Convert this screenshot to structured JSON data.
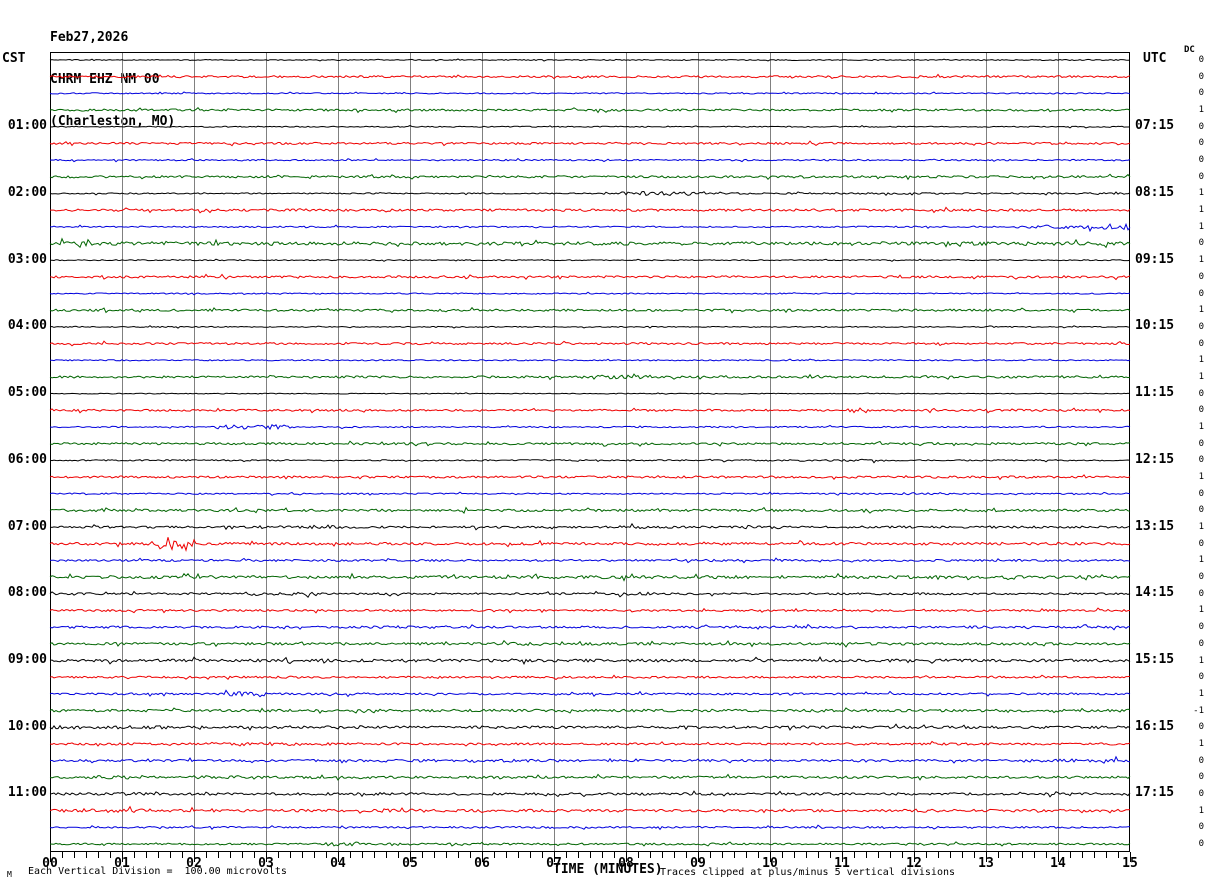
{
  "title": {
    "date": "Feb27,2026",
    "station": "CHRM EHZ NM 00",
    "location": "(Charleston, MO)"
  },
  "axes": {
    "left_heading": "CST",
    "right_heading": "UTC",
    "dc_heading": "DC",
    "x_title": "TIME (MINUTES)",
    "x_ticks": [
      "00",
      "01",
      "02",
      "03",
      "04",
      "05",
      "06",
      "07",
      "08",
      "09",
      "10",
      "11",
      "12",
      "13",
      "14",
      "15"
    ]
  },
  "footer": {
    "scale_note": "Each Vertical Division =  100.00 microvolts",
    "clip_note": "Traces clipped at plus/minus 5 vertical divisions",
    "corner_glyph": "M"
  },
  "colors": {
    "background": "#ffffff",
    "grid": "#808080",
    "frame": "#000000",
    "trace": {
      "black": "#000000",
      "red": "#ee0000",
      "blue": "#0000dd",
      "green": "#006400"
    }
  },
  "chart_data": {
    "type": "line",
    "subtype": "seismogram-helicorder",
    "title": "CHRM EHZ NM 00 (Charleston, MO) Feb27,2026",
    "xlabel": "TIME (MINUTES)",
    "x_range_minutes": [
      0,
      15
    ],
    "minutes_per_trace": 15,
    "traces_per_hour": 4,
    "color_cycle": [
      "black",
      "red",
      "blue",
      "green"
    ],
    "left_labels_cst": [
      "01:00",
      "02:00",
      "03:00",
      "04:00",
      "05:00",
      "06:00",
      "07:00",
      "08:00",
      "09:00",
      "10:00",
      "11:00"
    ],
    "right_labels_utc": [
      "07:15",
      "08:15",
      "09:15",
      "10:15",
      "11:15",
      "12:15",
      "13:15",
      "14:15",
      "15:15",
      "16:15",
      "17:15"
    ],
    "traces": [
      {
        "color": "black",
        "dc": 0,
        "cst_label": "",
        "utc_label": "",
        "noise": 0.5,
        "events": []
      },
      {
        "color": "red",
        "dc": 0,
        "cst_label": "",
        "utc_label": "",
        "noise": 1.0,
        "events": []
      },
      {
        "color": "blue",
        "dc": 0,
        "cst_label": "",
        "utc_label": "",
        "noise": 0.6,
        "events": []
      },
      {
        "color": "green",
        "dc": 1,
        "cst_label": "",
        "utc_label": "",
        "noise": 1.1,
        "events": []
      },
      {
        "color": "black",
        "dc": 0,
        "cst_label": "01:00",
        "utc_label": "07:15",
        "noise": 0.5,
        "events": []
      },
      {
        "color": "red",
        "dc": 0,
        "cst_label": "",
        "utc_label": "",
        "noise": 1.0,
        "events": []
      },
      {
        "color": "blue",
        "dc": 0,
        "cst_label": "",
        "utc_label": "",
        "noise": 0.7,
        "events": []
      },
      {
        "color": "green",
        "dc": 0,
        "cst_label": "",
        "utc_label": "",
        "noise": 1.1,
        "events": []
      },
      {
        "color": "black",
        "dc": 1,
        "cst_label": "02:00",
        "utc_label": "08:15",
        "noise": 0.6,
        "events": [
          [
            7.9,
            9.1,
            2.0
          ],
          [
            9.2,
            15,
            0.8
          ]
        ]
      },
      {
        "color": "red",
        "dc": 1,
        "cst_label": "",
        "utc_label": "",
        "noise": 1.2,
        "events": []
      },
      {
        "color": "blue",
        "dc": 1,
        "cst_label": "",
        "utc_label": "",
        "noise": 0.7,
        "events": [
          [
            13.4,
            14.6,
            1.8
          ],
          [
            14.6,
            15,
            3.0
          ]
        ]
      },
      {
        "color": "green",
        "dc": 0,
        "cst_label": "",
        "utc_label": "",
        "noise": 1.7,
        "events": [
          [
            0,
            0.5,
            2.6
          ],
          [
            3.5,
            5.2,
            1.3
          ],
          [
            10.8,
            12.3,
            1.1
          ],
          [
            14.2,
            15,
            1.2
          ]
        ]
      },
      {
        "color": "black",
        "dc": 1,
        "cst_label": "03:00",
        "utc_label": "09:15",
        "noise": 0.5,
        "events": []
      },
      {
        "color": "red",
        "dc": 0,
        "cst_label": "",
        "utc_label": "",
        "noise": 1.1,
        "events": []
      },
      {
        "color": "blue",
        "dc": 0,
        "cst_label": "",
        "utc_label": "",
        "noise": 0.6,
        "events": []
      },
      {
        "color": "green",
        "dc": 1,
        "cst_label": "",
        "utc_label": "",
        "noise": 1.1,
        "events": []
      },
      {
        "color": "black",
        "dc": 0,
        "cst_label": "04:00",
        "utc_label": "10:15",
        "noise": 0.5,
        "events": []
      },
      {
        "color": "red",
        "dc": 0,
        "cst_label": "",
        "utc_label": "",
        "noise": 1.0,
        "events": []
      },
      {
        "color": "blue",
        "dc": 1,
        "cst_label": "",
        "utc_label": "",
        "noise": 0.6,
        "events": []
      },
      {
        "color": "green",
        "dc": 1,
        "cst_label": "",
        "utc_label": "",
        "noise": 1.1,
        "events": [
          [
            7.3,
            8.4,
            1.8
          ]
        ]
      },
      {
        "color": "black",
        "dc": 0,
        "cst_label": "05:00",
        "utc_label": "11:15",
        "noise": 0.4,
        "events": []
      },
      {
        "color": "red",
        "dc": 0,
        "cst_label": "",
        "utc_label": "",
        "noise": 1.0,
        "events": [
          [
            1.1,
            1.9,
            0.9
          ]
        ]
      },
      {
        "color": "blue",
        "dc": 1,
        "cst_label": "",
        "utc_label": "",
        "noise": 0.7,
        "events": [
          [
            2.3,
            3.4,
            2.2
          ]
        ]
      },
      {
        "color": "green",
        "dc": 0,
        "cst_label": "",
        "utc_label": "",
        "noise": 1.1,
        "events": []
      },
      {
        "color": "black",
        "dc": 0,
        "cst_label": "06:00",
        "utc_label": "12:15",
        "noise": 0.7,
        "events": [
          [
            9.5,
            11.7,
            1.0
          ]
        ]
      },
      {
        "color": "red",
        "dc": 1,
        "cst_label": "",
        "utc_label": "",
        "noise": 1.1,
        "events": []
      },
      {
        "color": "blue",
        "dc": 0,
        "cst_label": "",
        "utc_label": "",
        "noise": 0.7,
        "events": [
          [
            11.8,
            12.5,
            1.2
          ]
        ]
      },
      {
        "color": "green",
        "dc": 0,
        "cst_label": "",
        "utc_label": "",
        "noise": 1.2,
        "events": [
          [
            9.5,
            11.5,
            1.0
          ]
        ]
      },
      {
        "color": "black",
        "dc": 1,
        "cst_label": "07:00",
        "utc_label": "13:15",
        "noise": 1.1,
        "events": [
          [
            2.9,
            4.1,
            1.8
          ],
          [
            7.9,
            8.6,
            1.5
          ],
          [
            9.6,
            10.2,
            1.7
          ]
        ]
      },
      {
        "color": "red",
        "dc": 0,
        "cst_label": "",
        "utc_label": "",
        "noise": 1.3,
        "events": [
          [
            1.4,
            2.0,
            6.5
          ],
          [
            12.9,
            13.4,
            1.5
          ]
        ]
      },
      {
        "color": "blue",
        "dc": 1,
        "cst_label": "",
        "utc_label": "",
        "noise": 1.0,
        "events": [
          [
            9.1,
            9.6,
            1.3
          ]
        ]
      },
      {
        "color": "green",
        "dc": 0,
        "cst_label": "",
        "utc_label": "",
        "noise": 1.5,
        "events": []
      },
      {
        "color": "black",
        "dc": 0,
        "cst_label": "08:00",
        "utc_label": "14:15",
        "noise": 1.0,
        "events": [
          [
            2.7,
            3.7,
            1.8
          ],
          [
            7.9,
            8.5,
            1.6
          ]
        ]
      },
      {
        "color": "red",
        "dc": 1,
        "cst_label": "",
        "utc_label": "",
        "noise": 1.0,
        "events": []
      },
      {
        "color": "blue",
        "dc": 0,
        "cst_label": "",
        "utc_label": "",
        "noise": 1.1,
        "events": [
          [
            4.2,
            5.5,
            1.3
          ],
          [
            12.5,
            15,
            1.2
          ]
        ]
      },
      {
        "color": "green",
        "dc": 0,
        "cst_label": "",
        "utc_label": "",
        "noise": 1.3,
        "events": [
          [
            6.0,
            6.9,
            1.6
          ]
        ]
      },
      {
        "color": "black",
        "dc": 1,
        "cst_label": "09:00",
        "utc_label": "15:15",
        "noise": 1.4,
        "events": [
          [
            1.6,
            2.6,
            1.5
          ],
          [
            4.1,
            4.7,
            1.5
          ],
          [
            12.8,
            13.5,
            1.3
          ]
        ]
      },
      {
        "color": "red",
        "dc": 0,
        "cst_label": "",
        "utc_label": "",
        "noise": 1.0,
        "events": []
      },
      {
        "color": "blue",
        "dc": 1,
        "cst_label": "",
        "utc_label": "",
        "noise": 1.0,
        "events": [
          [
            2.4,
            3.0,
            2.2
          ],
          [
            3.0,
            4.6,
            1.2
          ]
        ]
      },
      {
        "color": "green",
        "dc": -1,
        "cst_label": "",
        "utc_label": "",
        "noise": 1.3,
        "events": [
          [
            5.4,
            7.2,
            1.3
          ],
          [
            13.8,
            15,
            1.5
          ]
        ]
      },
      {
        "color": "black",
        "dc": 0,
        "cst_label": "10:00",
        "utc_label": "16:15",
        "noise": 1.3,
        "events": [
          [
            0.0,
            0.5,
            1.9
          ],
          [
            0.6,
            1.7,
            1.6
          ],
          [
            3.7,
            4.4,
            1.7
          ]
        ]
      },
      {
        "color": "red",
        "dc": 1,
        "cst_label": "",
        "utc_label": "",
        "noise": 1.1,
        "events": [
          [
            2.2,
            3.9,
            1.7
          ]
        ]
      },
      {
        "color": "blue",
        "dc": 0,
        "cst_label": "",
        "utc_label": "",
        "noise": 1.1,
        "events": [
          [
            4.6,
            7.1,
            1.4
          ],
          [
            11.2,
            11.7,
            1.5
          ],
          [
            13.5,
            15,
            1.6
          ]
        ]
      },
      {
        "color": "green",
        "dc": 0,
        "cst_label": "",
        "utc_label": "",
        "noise": 1.2,
        "events": [
          [
            0.6,
            1.1,
            1.9
          ],
          [
            1.9,
            2.7,
            1.6
          ],
          [
            3.7,
            4.7,
            1.4
          ]
        ]
      },
      {
        "color": "black",
        "dc": 0,
        "cst_label": "11:00",
        "utc_label": "17:15",
        "noise": 1.2,
        "events": [
          [
            1.0,
            1.4,
            1.5
          ],
          [
            3.8,
            4.6,
            1.4
          ],
          [
            7.5,
            8.3,
            1.2
          ]
        ]
      },
      {
        "color": "red",
        "dc": 1,
        "cst_label": "",
        "utc_label": "",
        "noise": 1.3,
        "events": [
          [
            0.4,
            1.4,
            1.9
          ],
          [
            4.6,
            5.2,
            1.8
          ],
          [
            11.8,
            12.3,
            1.6
          ]
        ]
      },
      {
        "color": "blue",
        "dc": 0,
        "cst_label": "",
        "utc_label": "",
        "noise": 0.9,
        "events": []
      },
      {
        "color": "green",
        "dc": 0,
        "cst_label": "",
        "utc_label": "",
        "noise": 0.9,
        "events": [
          [
            3.8,
            4.3,
            2.1
          ],
          [
            4.7,
            5.0,
            1.5
          ]
        ]
      }
    ]
  }
}
